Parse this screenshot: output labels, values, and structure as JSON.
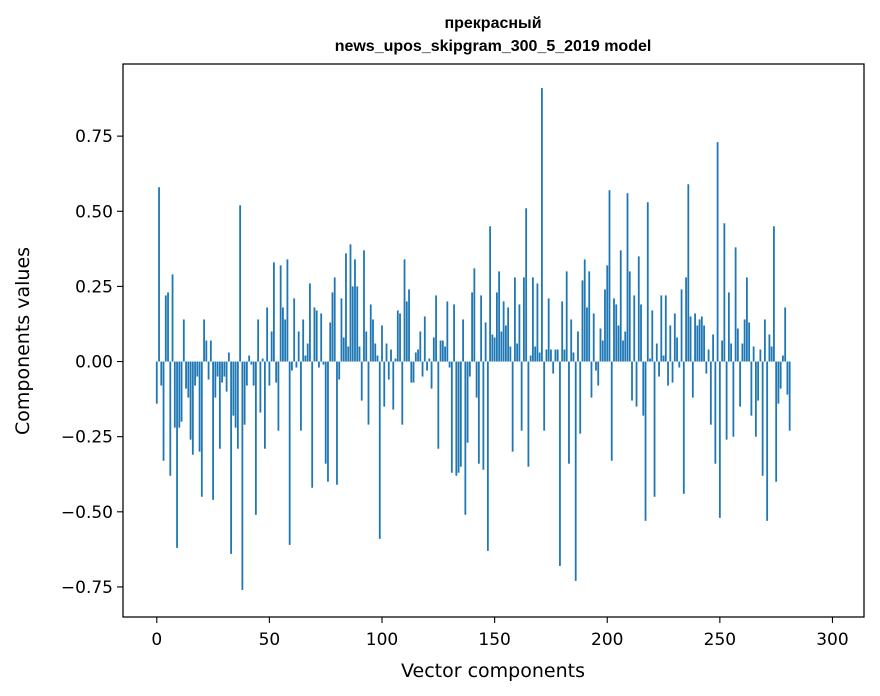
{
  "chart_data": {
    "type": "bar",
    "title_line1": "прекрасный",
    "title_line2": "news_upos_skipgram_300_5_2019 model",
    "xlabel": "Vector components",
    "ylabel": "Components values",
    "xlim": [
      -15,
      314
    ],
    "ylim": [
      -0.85,
      0.99
    ],
    "xticks": [
      0,
      50,
      100,
      150,
      200,
      250,
      300
    ],
    "xtick_labels": [
      "0",
      "50",
      "100",
      "150",
      "200",
      "250",
      "300"
    ],
    "yticks": [
      -0.75,
      -0.5,
      -0.25,
      0.0,
      0.25,
      0.5,
      0.75
    ],
    "ytick_labels": [
      "−0.75",
      "−0.50",
      "−0.25",
      "0.00",
      "0.25",
      "0.50",
      "0.75"
    ],
    "bar_color": "#1f77b4",
    "grid": false,
    "values": [
      -0.14,
      0.58,
      -0.08,
      -0.33,
      0.22,
      0.23,
      -0.38,
      0.29,
      -0.22,
      -0.62,
      -0.22,
      -0.2,
      0.14,
      -0.09,
      -0.12,
      -0.26,
      -0.31,
      -0.08,
      -0.05,
      -0.3,
      -0.45,
      0.14,
      0.07,
      -0.06,
      0.07,
      -0.46,
      -0.12,
      -0.05,
      -0.29,
      -0.07,
      -0.05,
      -0.1,
      0.03,
      -0.64,
      -0.18,
      -0.22,
      -0.29,
      0.52,
      -0.76,
      -0.21,
      -0.08,
      0.02,
      -0.01,
      -0.08,
      -0.51,
      0.14,
      -0.17,
      0.01,
      -0.29,
      0.18,
      -0.08,
      0.1,
      0.33,
      -0.07,
      -0.23,
      0.32,
      0.18,
      0.14,
      0.34,
      -0.61,
      -0.03,
      0.21,
      -0.02,
      0.1,
      -0.23,
      0.14,
      0.02,
      0.06,
      0.26,
      -0.42,
      0.18,
      0.17,
      -0.02,
      0.16,
      -0.01,
      -0.34,
      -0.4,
      0.13,
      0.23,
      0.28,
      -0.41,
      -0.06,
      0.21,
      0.08,
      0.36,
      0.05,
      0.39,
      0.25,
      0.34,
      0.25,
      0.05,
      -0.13,
      0.37,
      0.1,
      -0.21,
      0.19,
      0.14,
      0.06,
      0.02,
      -0.59,
      0.12,
      -0.15,
      0.06,
      -0.06,
      0.04,
      -0.16,
      0.01,
      0.17,
      0.16,
      -0.21,
      0.34,
      0.2,
      0.24,
      -0.07,
      -0.07,
      0.03,
      0.04,
      0.1,
      -0.05,
      0.15,
      -0.03,
      0.01,
      -0.09,
      0.08,
      0.22,
      -0.29,
      0.07,
      0.07,
      0.05,
      0.2,
      -0.02,
      -0.37,
      0.19,
      -0.38,
      -0.37,
      -0.35,
      0.14,
      -0.51,
      -0.27,
      -0.05,
      0.23,
      0.31,
      -0.12,
      -0.34,
      0.22,
      -0.36,
      0.13,
      -0.63,
      0.45,
      0.09,
      0.08,
      0.23,
      0.3,
      0.1,
      0.2,
      0.12,
      0.18,
      0.05,
      -0.3,
      0.28,
      0.06,
      0.19,
      -0.23,
      0.28,
      0.51,
      -0.35,
      0.02,
      0.28,
      0.05,
      0.26,
      0.03,
      0.91,
      -0.23,
      0.04,
      0.21,
      0.04,
      -0.04,
      0.04,
      0.04,
      -0.68,
      0.2,
      0.04,
      0.3,
      -0.34,
      0.14,
      0.03,
      -0.73,
      0.1,
      -0.24,
      0.27,
      0.34,
      0.18,
      0.3,
      -0.12,
      0.16,
      -0.03,
      -0.08,
      0.11,
      0.07,
      0.24,
      0.32,
      0.57,
      -0.33,
      0.21,
      0.19,
      0.12,
      0.37,
      0.07,
      0.1,
      0.56,
      0.3,
      -0.13,
      0.22,
      -0.15,
      0.35,
      0.19,
      -0.18,
      -0.53,
      0.53,
      0.01,
      0.17,
      -0.45,
      0.06,
      -0.05,
      0.22,
      0.02,
      0.22,
      -0.08,
      0.12,
      -0.07,
      0.16,
      0.08,
      -0.02,
      0.24,
      -0.44,
      0.28,
      0.59,
      0.15,
      -0.12,
      0.16,
      0.12,
      0.14,
      0.15,
      0.12,
      -0.04,
      0.04,
      -0.21,
      0.09,
      -0.34,
      0.73,
      -0.52,
      0.07,
      0.46,
      -0.26,
      0.23,
      0.06,
      -0.25,
      0.38,
      0.11,
      -0.15,
      0.06,
      0.14,
      0.28,
      0.13,
      -0.18,
      0.05,
      -0.25,
      -0.13,
      0.04,
      -0.38,
      0.14,
      -0.53,
      0.09,
      0.05,
      0.45,
      -0.4,
      -0.14,
      -0.09,
      0.02,
      0.18,
      -0.11,
      -0.23
    ]
  }
}
